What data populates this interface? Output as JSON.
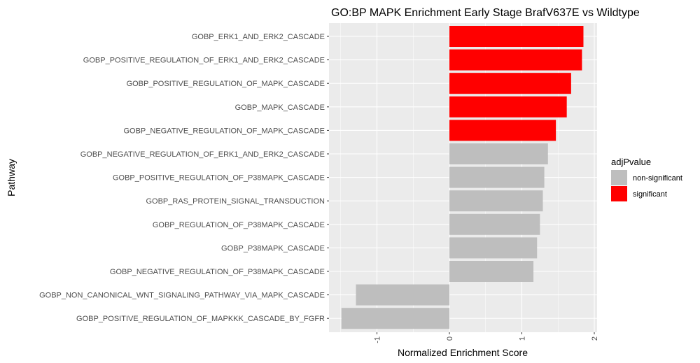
{
  "chart_data": {
    "type": "bar",
    "orientation": "horizontal",
    "title": "GO:BP MAPK Enrichment Early Stage BrafV637E vs Wildtype",
    "xlabel": "Normalized Enrichment Score",
    "ylabel": "Pathway",
    "xlim": [
      -1.5,
      2.0
    ],
    "xticks": [
      -1,
      0,
      1,
      2
    ],
    "xtick_labels": [
      "-1",
      "0",
      "1",
      "2"
    ],
    "grid": true,
    "legend_position": "right",
    "legend": {
      "title": "adjPvalue",
      "entries": [
        {
          "label": "non-significant",
          "color": "#bebebe"
        },
        {
          "label": "significant",
          "color": "#ff0000"
        }
      ]
    },
    "categories": [
      "GOBP_ERK1_AND_ERK2_CASCADE",
      "GOBP_POSITIVE_REGULATION_OF_ERK1_AND_ERK2_CASCADE",
      "GOBP_POSITIVE_REGULATION_OF_MAPK_CASCADE",
      "GOBP_MAPK_CASCADE",
      "GOBP_NEGATIVE_REGULATION_OF_MAPK_CASCADE",
      "GOBP_NEGATIVE_REGULATION_OF_ERK1_AND_ERK2_CASCADE",
      "GOBP_POSITIVE_REGULATION_OF_P38MAPK_CASCADE",
      "GOBP_RAS_PROTEIN_SIGNAL_TRANSDUCTION",
      "GOBP_REGULATION_OF_P38MAPK_CASCADE",
      "GOBP_P38MAPK_CASCADE",
      "GOBP_NEGATIVE_REGULATION_OF_P38MAPK_CASCADE",
      "GOBP_NON_CANONICAL_WNT_SIGNALING_PATHWAY_VIA_MAPK_CASCADE",
      "GOBP_POSITIVE_REGULATION_OF_MAPKKK_CASCADE_BY_FGFR"
    ],
    "values": [
      1.85,
      1.83,
      1.68,
      1.62,
      1.47,
      1.36,
      1.31,
      1.29,
      1.25,
      1.21,
      1.16,
      -1.29,
      -1.49
    ],
    "groups": [
      "significant",
      "significant",
      "significant",
      "significant",
      "significant",
      "non-significant",
      "non-significant",
      "non-significant",
      "non-significant",
      "non-significant",
      "non-significant",
      "non-significant",
      "non-significant"
    ],
    "colors": {
      "significant": "#ff0000",
      "non-significant": "#bebebe",
      "panel": "#ebebeb",
      "grid": "#ffffff"
    }
  }
}
